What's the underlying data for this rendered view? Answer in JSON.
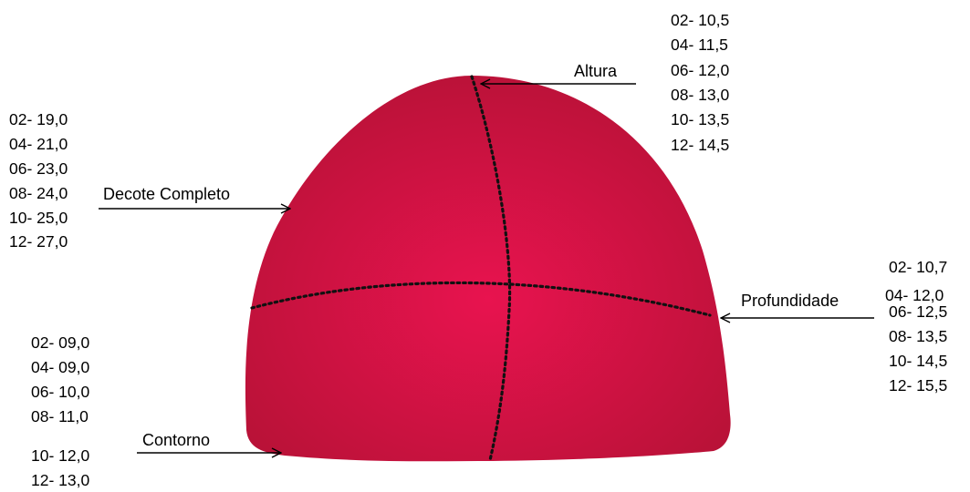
{
  "diagram": {
    "fill_center": "#e8134f",
    "fill_edge": "#b81237",
    "guide_color": "#111111",
    "labels": {
      "altura": "Altura",
      "decote": "Decote Completo",
      "profundidade": "Profundidade",
      "contorno": "Contorno"
    },
    "sizes": {
      "altura": [
        "02- 10,5",
        "04- 11,5",
        "06- 12,0",
        "08- 13,0",
        "10- 13,5",
        "12- 14,5"
      ],
      "decote": [
        "02- 19,0",
        "04- 21,0",
        "06- 23,0",
        "08- 24,0",
        "10- 25,0",
        "12- 27,0"
      ],
      "profundidade": [
        "02- 10,7",
        "04- 12,0",
        "06- 12,5",
        "08- 13,5",
        "10- 14,5",
        "12- 15,5"
      ],
      "contorno": [
        "02- 09,0",
        "04- 09,0",
        "06- 10,0",
        "08- 11,0",
        "10- 12,0",
        "12- 13,0"
      ]
    }
  }
}
